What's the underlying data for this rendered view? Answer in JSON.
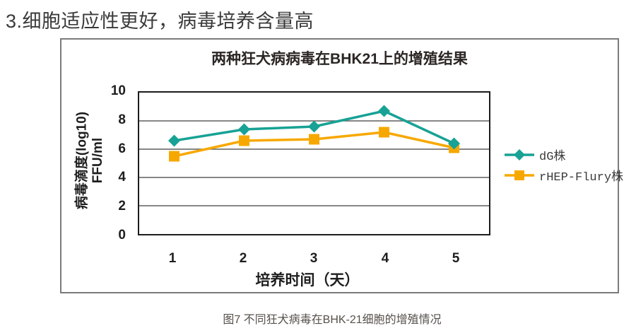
{
  "heading": "3.细胞适应性更好，病毒培养含量高",
  "chart": {
    "title": "两种狂犬病病毒在BHK21上的增殖结果",
    "y_axis": {
      "label_line1": "病毒滴度(log10)",
      "label_line2": "FFU/ml"
    },
    "x_axis": {
      "label": "培养时间（天）"
    },
    "legend": [
      {
        "label": "dG株",
        "marker": "diamond",
        "color": "#17a295"
      },
      {
        "label": "rHEP-Flury株",
        "marker": "square",
        "color": "#f7a800"
      }
    ]
  },
  "chart_data": {
    "type": "line",
    "title": "两种狂犬病病毒在BHK21上的增殖结果",
    "xlabel": "培养时间（天）",
    "ylabel": "病毒滴度(log10) FFU/ml",
    "categories": [
      "1",
      "2",
      "3",
      "4",
      "5"
    ],
    "xticks": [
      "1",
      "2",
      "3",
      "4",
      "5"
    ],
    "yticks": [
      "10",
      "8",
      "6",
      "4",
      "2",
      "0"
    ],
    "ylim": [
      0,
      10
    ],
    "grid_values": [
      2,
      4,
      6,
      8
    ],
    "grid_color": "#5f5f5f",
    "series": [
      {
        "name": "rHEP-Flury株",
        "marker": "square",
        "color": "#f7a800",
        "values": [
          5.5,
          6.6,
          6.7,
          7.2,
          6.1
        ]
      },
      {
        "name": "dG株",
        "marker": "diamond",
        "color": "#17a295",
        "values": [
          6.6,
          7.4,
          7.6,
          8.7,
          6.4
        ]
      }
    ],
    "legend_position": "right-outside",
    "grid": true
  },
  "caption": "图7 不同狂犬病毒在BHK-21细胞的增殖情况"
}
